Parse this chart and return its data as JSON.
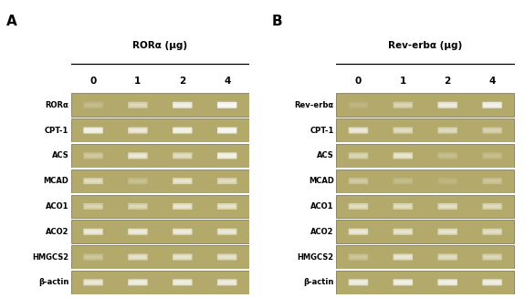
{
  "panel_A_label": "A",
  "panel_B_label": "B",
  "panel_A_title": "RORα (μg)",
  "panel_B_title": "Rev-erbα (μg)",
  "doses": [
    "0",
    "1",
    "2",
    "4"
  ],
  "panel_A_genes": [
    "RORα",
    "CPT-1",
    "ACS",
    "MCAD",
    "ACO1",
    "ACO2",
    "HMGCS2",
    "β-actin"
  ],
  "panel_B_genes": [
    "Rev-erbα",
    "CPT-1",
    "ACS",
    "MCAD",
    "ACO1",
    "ACO2",
    "HMGCS2",
    "β-actin"
  ],
  "gel_bg_color": "#b3a96b",
  "outer_bg": "#ffffff",
  "border_color": "#706a50",
  "band_color": "#ffffff",
  "panel_A_bands": {
    "RORα": [
      0.18,
      0.5,
      0.85,
      1.0
    ],
    "CPT-1": [
      0.88,
      0.72,
      0.88,
      0.95
    ],
    "ACS": [
      0.32,
      0.72,
      0.55,
      0.88
    ],
    "MCAD": [
      0.55,
      0.22,
      0.65,
      0.55
    ],
    "ACO1": [
      0.45,
      0.48,
      0.68,
      0.62
    ],
    "ACO2": [
      0.75,
      0.75,
      0.75,
      0.72
    ],
    "HMGCS2": [
      0.28,
      0.62,
      0.65,
      0.62
    ],
    "β-actin": [
      0.72,
      0.8,
      0.8,
      0.78
    ]
  },
  "panel_B_bands": {
    "Rev-erbα": [
      0.12,
      0.45,
      0.78,
      0.88
    ],
    "CPT-1": [
      0.72,
      0.55,
      0.52,
      0.42
    ],
    "ACS": [
      0.45,
      0.68,
      0.2,
      0.2
    ],
    "MCAD": [
      0.32,
      0.18,
      0.12,
      0.28
    ],
    "ACO1": [
      0.55,
      0.55,
      0.58,
      0.52
    ],
    "ACO2": [
      0.72,
      0.65,
      0.65,
      0.58
    ],
    "HMGCS2": [
      0.28,
      0.68,
      0.55,
      0.48
    ],
    "β-actin": [
      0.8,
      0.85,
      0.85,
      0.82
    ]
  },
  "fig_w": 5.75,
  "fig_h": 3.27,
  "dpi": 100
}
